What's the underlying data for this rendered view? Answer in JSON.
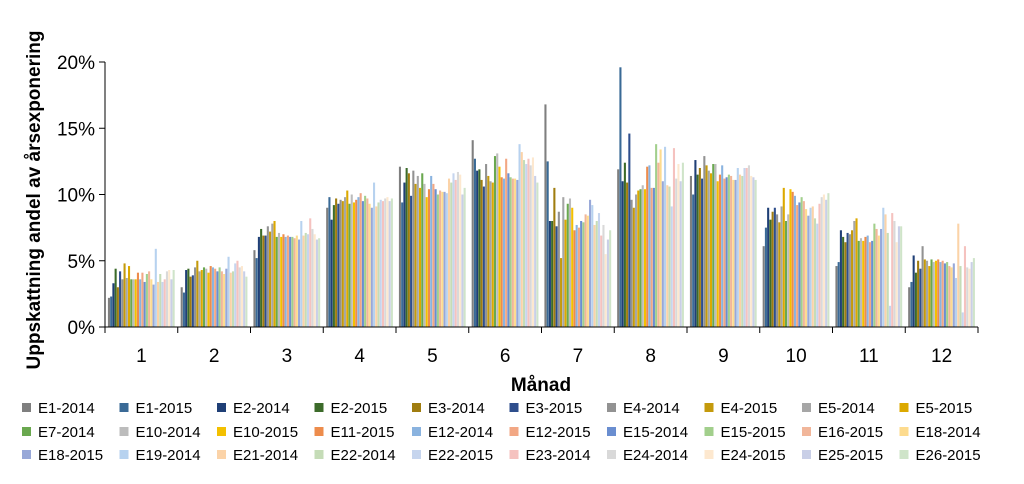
{
  "chart_data": {
    "type": "bar",
    "title": "",
    "xlabel": "Månad",
    "ylabel": "Uppskattning andel av årsexponering",
    "ylim": [
      0,
      20
    ],
    "y_ticks": [
      "0%",
      "5%",
      "10%",
      "15%",
      "20%"
    ],
    "y_tick_values": [
      0,
      5,
      10,
      15,
      20
    ],
    "grid": false,
    "legend_position": "bottom",
    "categories": [
      "1",
      "2",
      "3",
      "4",
      "5",
      "6",
      "7",
      "8",
      "9",
      "10",
      "11",
      "12"
    ],
    "series": [
      {
        "name": "E1-2014",
        "color": "#7f7f7f",
        "values": [
          2.2,
          3.0,
          5.8,
          9.0,
          12.1,
          14.1,
          16.8,
          11.9,
          11.4,
          6.1,
          4.6,
          3.0
        ]
      },
      {
        "name": "E1-2015",
        "color": "#3a6a96",
        "values": [
          2.3,
          2.6,
          5.2,
          9.8,
          9.4,
          12.7,
          12.5,
          19.6,
          10.0,
          7.5,
          4.9,
          3.4
        ]
      },
      {
        "name": "E2-2014",
        "color": "#1f3f76",
        "values": [
          3.3,
          4.3,
          6.8,
          8.1,
          10.9,
          11.8,
          8.0,
          11.0,
          12.6,
          9.0,
          7.3,
          5.4
        ]
      },
      {
        "name": "E2-2015",
        "color": "#3c6b2a",
        "values": [
          4.4,
          4.4,
          7.4,
          9.2,
          12.0,
          11.9,
          8.0,
          12.4,
          11.5,
          8.1,
          6.8,
          4.1
        ]
      },
      {
        "name": "E3-2014",
        "color": "#a07d10",
        "values": [
          3.0,
          3.8,
          6.9,
          9.7,
          11.6,
          11.1,
          10.5,
          10.9,
          12.0,
          8.7,
          6.4,
          5.0
        ]
      },
      {
        "name": "E3-2015",
        "color": "#2e4e8c",
        "values": [
          4.2,
          3.9,
          6.9,
          9.3,
          9.9,
          10.6,
          7.6,
          14.6,
          11.2,
          9.0,
          7.1,
          4.4
        ]
      },
      {
        "name": "E4-2014",
        "color": "#929292",
        "values": [
          3.6,
          4.5,
          7.6,
          9.6,
          11.8,
          12.3,
          8.7,
          9.6,
          12.9,
          8.5,
          7.0,
          6.1
        ]
      },
      {
        "name": "E4-2015",
        "color": "#c49a0c",
        "values": [
          4.8,
          5.0,
          7.2,
          9.5,
          10.8,
          11.4,
          5.2,
          9.0,
          12.2,
          7.9,
          7.3,
          5.1
        ]
      },
      {
        "name": "E5-2014",
        "color": "#a6a6a6",
        "values": [
          3.7,
          4.2,
          7.8,
          9.8,
          11.4,
          11.0,
          9.8,
          10.0,
          11.8,
          9.1,
          8.0,
          5.0
        ]
      },
      {
        "name": "E5-2015",
        "color": "#dca900",
        "values": [
          4.6,
          4.3,
          8.0,
          10.3,
          10.5,
          10.9,
          8.1,
          10.3,
          11.6,
          10.5,
          8.2,
          4.6
        ]
      },
      {
        "name": "E7-2014",
        "color": "#6aa84f",
        "values": [
          3.6,
          4.5,
          6.8,
          9.3,
          11.6,
          12.9,
          9.3,
          10.4,
          12.3,
          8.0,
          6.5,
          5.1
        ]
      },
      {
        "name": "E10-2014",
        "color": "#bcbcbc",
        "values": [
          3.6,
          4.4,
          7.1,
          10.0,
          10.8,
          13.1,
          9.7,
          10.7,
          12.3,
          8.5,
          6.7,
          4.9
        ]
      },
      {
        "name": "E10-2015",
        "color": "#f3c000",
        "values": [
          3.6,
          4.1,
          6.8,
          9.4,
          9.8,
          12.1,
          9.0,
          10.4,
          11.0,
          10.4,
          6.5,
          5.0
        ]
      },
      {
        "name": "E11-2015",
        "color": "#ed8c4c",
        "values": [
          4.1,
          4.6,
          7.0,
          9.6,
          10.4,
          11.3,
          7.3,
          12.1,
          11.5,
          10.2,
          6.8,
          5.1
        ]
      },
      {
        "name": "E12-2014",
        "color": "#8ab3df",
        "values": [
          3.6,
          4.5,
          6.8,
          9.8,
          11.4,
          11.2,
          7.7,
          12.2,
          12.2,
          9.9,
          6.9,
          4.9
        ]
      },
      {
        "name": "E12-2015",
        "color": "#f2a784",
        "values": [
          4.1,
          4.4,
          6.9,
          10.1,
          10.8,
          12.7,
          7.5,
          10.5,
          11.2,
          9.2,
          6.4,
          5.0
        ]
      },
      {
        "name": "E15-2014",
        "color": "#6a8ed0",
        "values": [
          3.4,
          4.2,
          6.8,
          9.5,
          10.4,
          11.6,
          8.0,
          10.5,
          11.3,
          9.4,
          6.5,
          4.8
        ]
      },
      {
        "name": "E15-2015",
        "color": "#a2cf8c",
        "values": [
          4.0,
          4.5,
          6.8,
          9.9,
          10.0,
          11.3,
          7.9,
          13.8,
          11.5,
          9.8,
          7.8,
          4.9
        ]
      },
      {
        "name": "E16-2015",
        "color": "#f1b69a",
        "values": [
          4.2,
          4.2,
          6.7,
          9.7,
          10.3,
          11.2,
          8.5,
          12.4,
          11.4,
          9.5,
          7.4,
          4.6
        ]
      },
      {
        "name": "E18-2014",
        "color": "#fddb8e",
        "values": [
          3.6,
          4.0,
          6.9,
          9.3,
          10.2,
          11.2,
          8.4,
          13.4,
          11.1,
          8.9,
          6.9,
          4.5
        ]
      },
      {
        "name": "E18-2015",
        "color": "#98a8d8",
        "values": [
          3.2,
          4.4,
          6.6,
          9.0,
          10.2,
          11.1,
          9.6,
          11.0,
          11.1,
          8.4,
          7.4,
          4.8
        ]
      },
      {
        "name": "E19-2014",
        "color": "#b7d2ef",
        "values": [
          5.9,
          5.3,
          8.0,
          10.9,
          10.1,
          13.8,
          9.2,
          13.6,
          12.0,
          9.0,
          9.0,
          3.7
        ]
      },
      {
        "name": "E21-2014",
        "color": "#fbd3a8",
        "values": [
          3.4,
          4.1,
          6.9,
          9.1,
          11.2,
          13.2,
          7.7,
          10.7,
          11.5,
          9.1,
          8.5,
          7.8
        ]
      },
      {
        "name": "E22-2014",
        "color": "#c5dcb7",
        "values": [
          4.0,
          4.2,
          7.1,
          9.4,
          10.9,
          12.6,
          8.0,
          10.6,
          11.4,
          8.2,
          7.1,
          4.6
        ]
      },
      {
        "name": "E22-2015",
        "color": "#c6d5ee",
        "values": [
          3.4,
          4.8,
          7.0,
          9.6,
          11.6,
          12.3,
          8.6,
          9.1,
          12.0,
          7.8,
          1.6,
          1.1
        ]
      },
      {
        "name": "E23-2014",
        "color": "#f5c2bf",
        "values": [
          3.6,
          5.0,
          8.2,
          9.5,
          11.1,
          12.7,
          6.9,
          13.5,
          12.0,
          9.3,
          8.6,
          6.1
        ]
      },
      {
        "name": "E24-2014",
        "color": "#d9d9d9",
        "values": [
          4.2,
          4.5,
          7.4,
          9.7,
          11.7,
          12.2,
          7.7,
          11.2,
          12.2,
          9.8,
          8.0,
          4.5
        ]
      },
      {
        "name": "E24-2015",
        "color": "#fde8cf",
        "values": [
          4.3,
          4.6,
          7.0,
          9.8,
          11.5,
          12.8,
          5.5,
          12.3,
          11.4,
          10.0,
          6.4,
          4.4
        ]
      },
      {
        "name": "E25-2015",
        "color": "#c9cfe7",
        "values": [
          3.6,
          4.2,
          6.6,
          9.5,
          10.0,
          11.4,
          6.6,
          11.0,
          11.3,
          9.6,
          7.6,
          4.9
        ]
      },
      {
        "name": "E26-2015",
        "color": "#cfe4c9",
        "values": [
          4.3,
          3.8,
          6.7,
          9.7,
          10.5,
          10.9,
          7.3,
          12.4,
          11.1,
          10.1,
          7.6,
          5.2
        ]
      }
    ]
  }
}
